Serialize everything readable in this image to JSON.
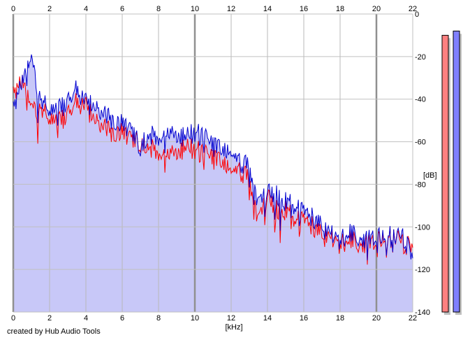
{
  "chart_data": {
    "type": "line",
    "xlabel": "[kHz]",
    "ylabel": "[dB]",
    "xlim": [
      0,
      22
    ],
    "ylim": [
      -140,
      0
    ],
    "xticks": [
      "0",
      "2",
      "4",
      "6",
      "8",
      "10",
      "12",
      "14",
      "16",
      "18",
      "20",
      "22"
    ],
    "yticks": [
      "0",
      "-20",
      "-40",
      "-60",
      "-80",
      "-100",
      "-120",
      "-140"
    ],
    "grid": true,
    "x": [
      0,
      0.5,
      1,
      1.5,
      2,
      2.5,
      3,
      3.5,
      4,
      4.5,
      5,
      5.5,
      6,
      6.5,
      7,
      7.5,
      8,
      8.5,
      9,
      9.5,
      10,
      10.5,
      11,
      11.5,
      12,
      12.5,
      13,
      13.5,
      14,
      14.5,
      15,
      15.5,
      16,
      16.5,
      17,
      17.5,
      18,
      18.5,
      19,
      19.5,
      20,
      20.5,
      21,
      21.5,
      22
    ],
    "series": [
      {
        "color": "#ff0000",
        "values": [
          -38,
          -32,
          -45,
          -46,
          -48,
          -50,
          -48,
          -40,
          -44,
          -50,
          -52,
          -56,
          -56,
          -58,
          -60,
          -62,
          -64,
          -64,
          -66,
          -62,
          -64,
          -64,
          -68,
          -70,
          -74,
          -74,
          -78,
          -98,
          -86,
          -92,
          -92,
          -96,
          -98,
          -100,
          -104,
          -106,
          -108,
          -106,
          -108,
          -106,
          -108,
          -104,
          -106,
          -108,
          -110
        ]
      },
      {
        "color": "#0000d0",
        "values": [
          -45,
          -32,
          -22,
          -42,
          -44,
          -44,
          -42,
          -34,
          -42,
          -44,
          -46,
          -50,
          -52,
          -54,
          -62,
          -56,
          -57,
          -54,
          -58,
          -57,
          -56,
          -56,
          -62,
          -64,
          -66,
          -70,
          -72,
          -90,
          -84,
          -85,
          -88,
          -90,
          -94,
          -96,
          -100,
          -104,
          -106,
          -103,
          -105,
          -104,
          -106,
          -103,
          -106,
          -105,
          -115
        ]
      }
    ],
    "fill_color": "#c8c8f8",
    "meters": [
      {
        "color": "#ff8080",
        "level_db": -10
      },
      {
        "color": "#8080ff",
        "level_db": -8
      }
    ]
  },
  "credit": "created by Hub Audio Tools"
}
